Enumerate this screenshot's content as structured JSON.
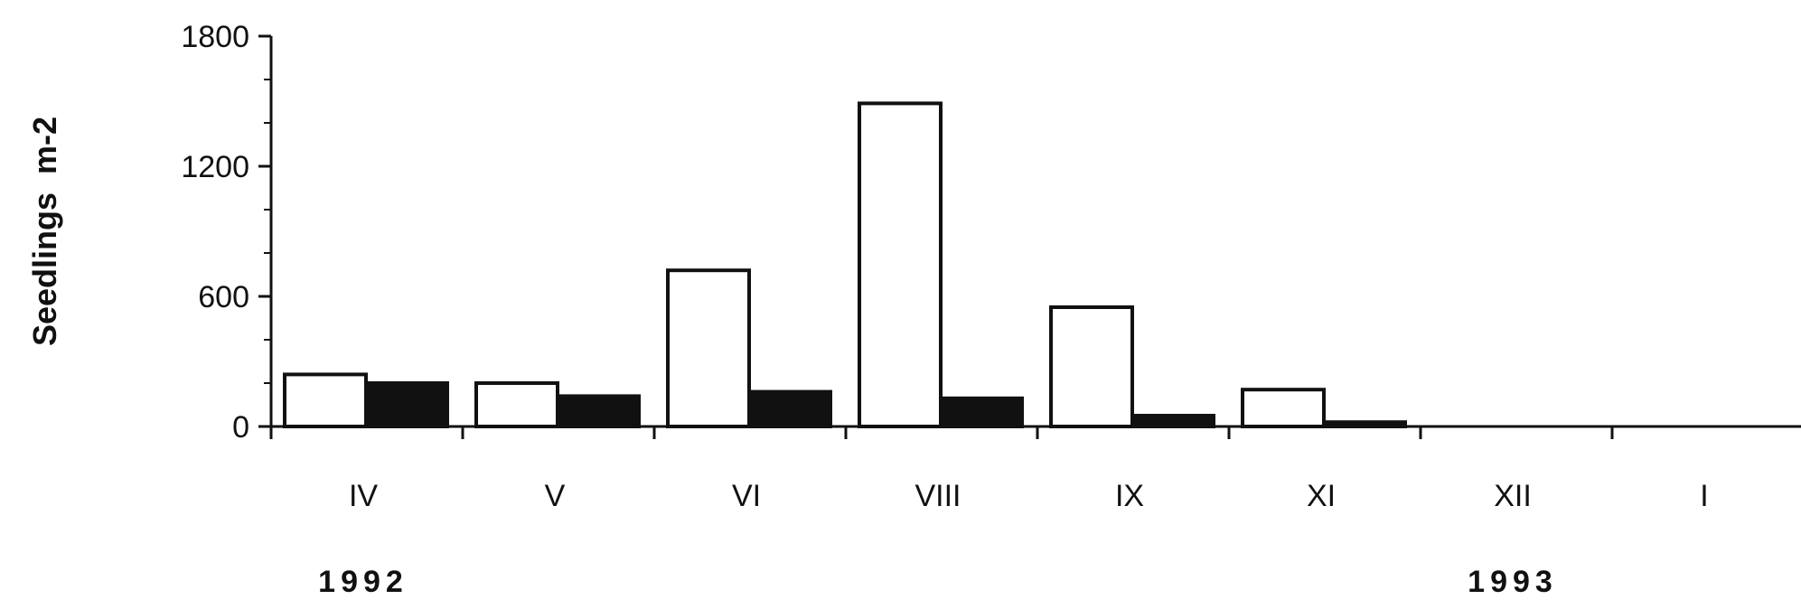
{
  "chart_data": {
    "type": "bar",
    "title": "",
    "xlabel": "",
    "ylabel": "Seedlings  m-2",
    "ylim": [
      0,
      1800
    ],
    "yticks": [
      0,
      600,
      1200,
      1800
    ],
    "y_minor_step": 200,
    "categories": [
      "IV",
      "V",
      "VI",
      "VIII",
      "IX",
      "XI",
      "XII",
      "I"
    ],
    "year_labels": [
      {
        "text": "1992",
        "under_category": "IV"
      },
      {
        "text": "1993",
        "under_category": "XII"
      }
    ],
    "series": [
      {
        "fill": "#ffffff",
        "stroke": "#111111",
        "values": [
          240,
          200,
          720,
          1490,
          550,
          170,
          0,
          0
        ]
      },
      {
        "fill": "#111111",
        "stroke": "#111111",
        "values": [
          200,
          140,
          160,
          130,
          50,
          20,
          0,
          0
        ]
      }
    ],
    "grid": false,
    "legend": "none"
  }
}
